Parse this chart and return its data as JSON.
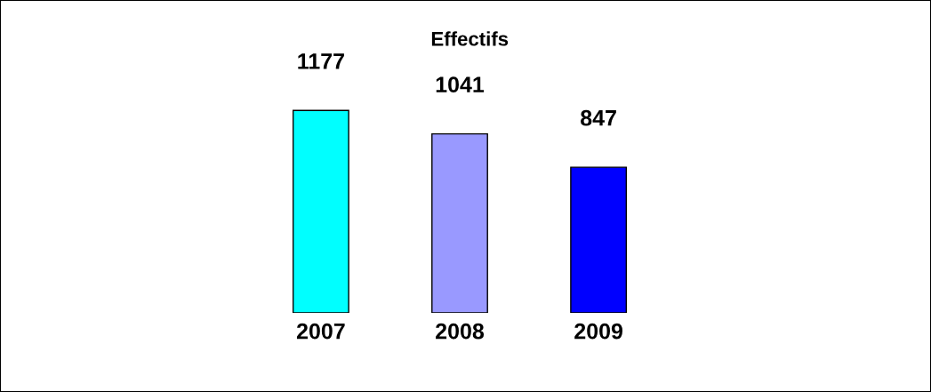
{
  "chart_data": {
    "type": "bar",
    "title": "Effectifs",
    "categories": [
      "2007",
      "2008",
      "2009"
    ],
    "values": [
      1177,
      1041,
      847
    ],
    "colors": [
      "#00ffff",
      "#9999ff",
      "#0000ff"
    ],
    "data_labels": true,
    "grid": false,
    "legend": false,
    "tick_labels": "x"
  }
}
